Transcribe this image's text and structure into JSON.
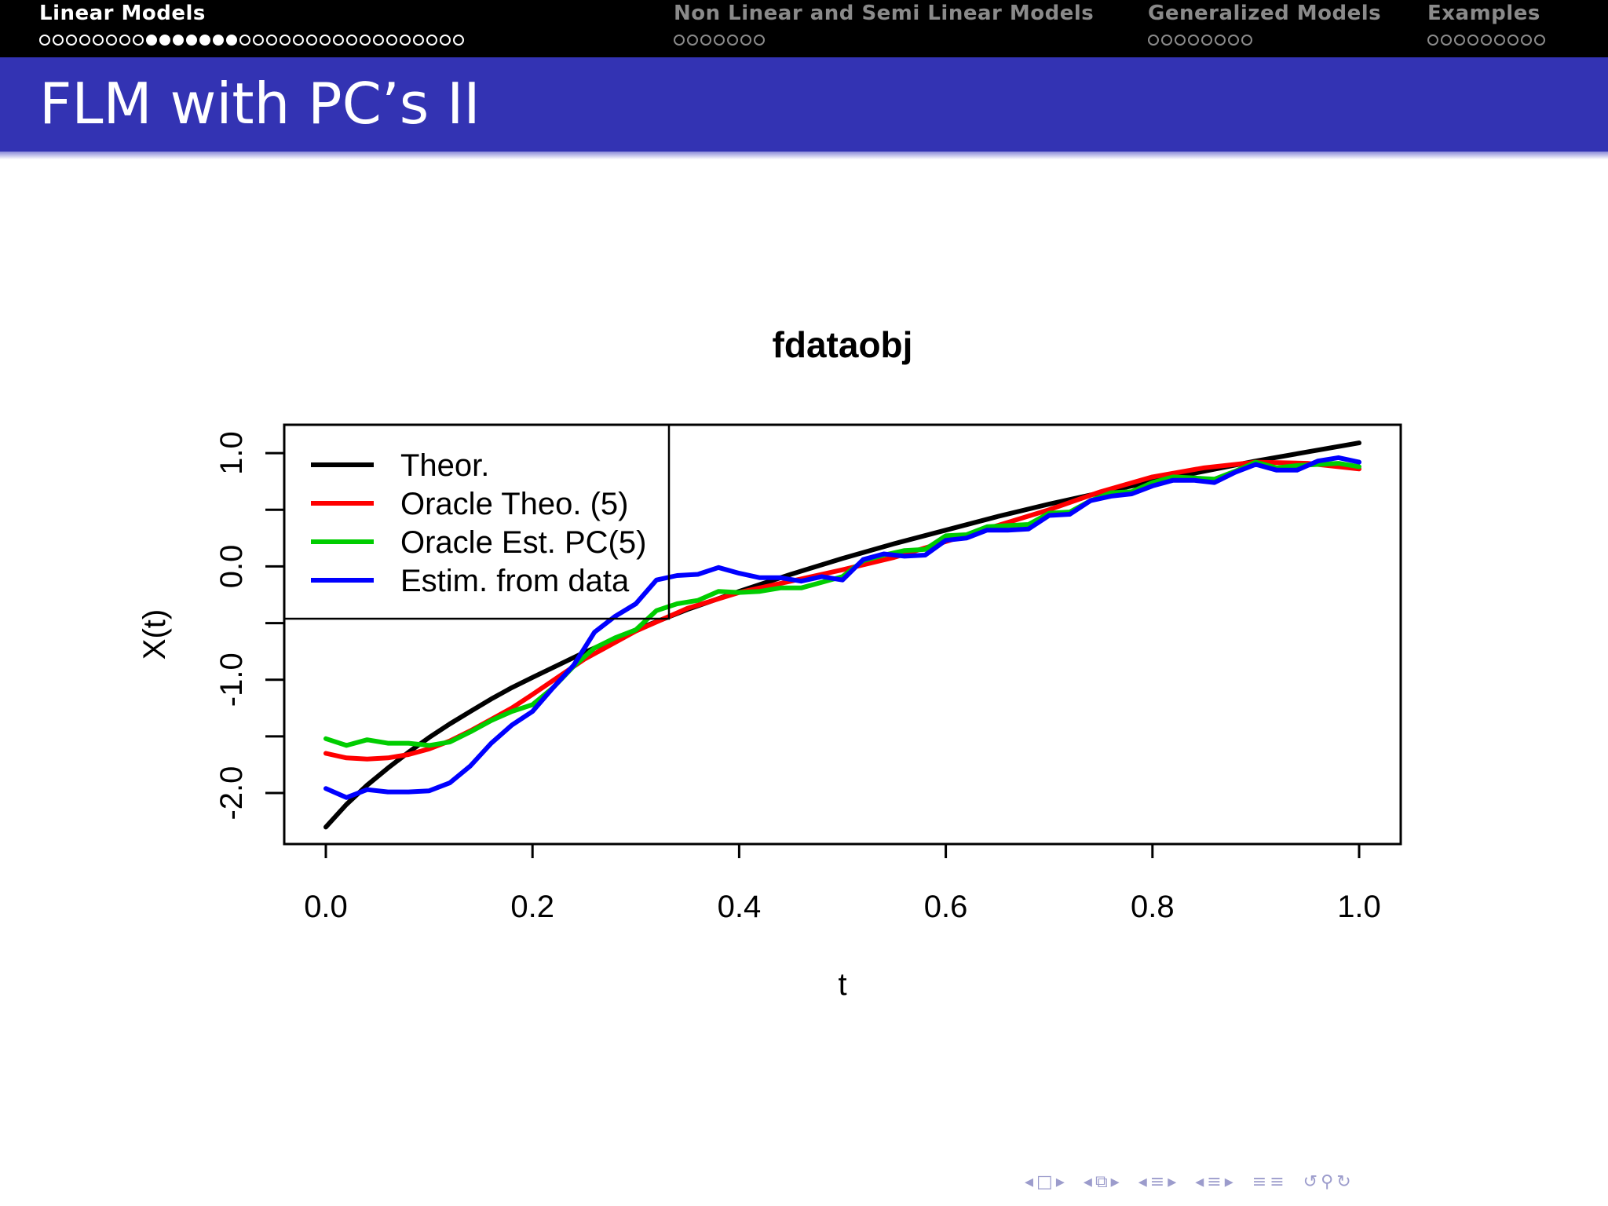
{
  "nav": {
    "sections": [
      {
        "title": "Linear Models",
        "active": true,
        "dots": 32,
        "filled": [
          8,
          9,
          10,
          11,
          12,
          13,
          14
        ]
      },
      {
        "title": "Non Linear and Semi Linear Models",
        "active": false,
        "dots": 7,
        "filled": []
      },
      {
        "title": "Generalized Models",
        "active": false,
        "dots": 8,
        "filled": []
      },
      {
        "title": "Examples",
        "active": false,
        "dots": 9,
        "filled": []
      }
    ]
  },
  "slide": {
    "title": "FLM with PC’s II"
  },
  "colors": {
    "header_bg": "#000000",
    "title_bg": "#3333b3",
    "theor": "#000000",
    "oracle_theo": "#ff0000",
    "oracle_est": "#00cd00",
    "estim": "#0000ff"
  },
  "chart_data": {
    "type": "line",
    "title": "fdataobj",
    "xlabel": "t",
    "ylabel": "X(t)",
    "xlim": [
      0.0,
      1.0
    ],
    "ylim": [
      -2.45,
      1.25
    ],
    "xticks": [
      "0.0",
      "0.2",
      "0.4",
      "0.6",
      "0.8",
      "1.0"
    ],
    "yticks": [
      "-2.0",
      "-1.0",
      "0.0",
      "1.0"
    ],
    "legend_position": "top-left",
    "series": [
      {
        "name": "Theor.",
        "color": "#000000",
        "x": [
          0.0,
          0.02,
          0.04,
          0.06,
          0.08,
          0.1,
          0.12,
          0.14,
          0.16,
          0.18,
          0.2,
          0.25,
          0.3,
          0.35,
          0.4,
          0.45,
          0.5,
          0.55,
          0.6,
          0.65,
          0.7,
          0.75,
          0.8,
          0.85,
          0.9,
          0.95,
          1.0
        ],
        "y": [
          -2.3,
          -2.1,
          -1.93,
          -1.78,
          -1.64,
          -1.51,
          -1.39,
          -1.28,
          -1.17,
          -1.07,
          -0.98,
          -0.76,
          -0.56,
          -0.38,
          -0.22,
          -0.07,
          0.07,
          0.2,
          0.32,
          0.44,
          0.55,
          0.65,
          0.75,
          0.84,
          0.93,
          1.01,
          1.09
        ]
      },
      {
        "name": "Oracle Theo. (5)",
        "color": "#ff0000",
        "x": [
          0.0,
          0.02,
          0.04,
          0.06,
          0.08,
          0.1,
          0.12,
          0.14,
          0.16,
          0.18,
          0.2,
          0.25,
          0.3,
          0.35,
          0.4,
          0.45,
          0.5,
          0.55,
          0.6,
          0.65,
          0.7,
          0.75,
          0.8,
          0.85,
          0.9,
          0.95,
          1.0
        ],
        "y": [
          -1.65,
          -1.69,
          -1.7,
          -1.69,
          -1.66,
          -1.61,
          -1.54,
          -1.45,
          -1.35,
          -1.25,
          -1.13,
          -0.82,
          -0.57,
          -0.37,
          -0.23,
          -0.13,
          -0.03,
          0.08,
          0.22,
          0.36,
          0.5,
          0.66,
          0.79,
          0.87,
          0.92,
          0.91,
          0.86
        ]
      },
      {
        "name": "Oracle Est. PC(5)",
        "color": "#00cd00",
        "x": [
          0.0,
          0.02,
          0.04,
          0.06,
          0.08,
          0.1,
          0.12,
          0.14,
          0.16,
          0.18,
          0.2,
          0.22,
          0.24,
          0.26,
          0.28,
          0.3,
          0.32,
          0.34,
          0.36,
          0.38,
          0.4,
          0.42,
          0.44,
          0.46,
          0.48,
          0.5,
          0.52,
          0.54,
          0.56,
          0.58,
          0.6,
          0.62,
          0.64,
          0.66,
          0.68,
          0.7,
          0.72,
          0.74,
          0.76,
          0.78,
          0.8,
          0.82,
          0.84,
          0.86,
          0.88,
          0.9,
          0.92,
          0.94,
          0.96,
          0.98,
          1.0
        ],
        "y": [
          -1.52,
          -1.58,
          -1.53,
          -1.56,
          -1.56,
          -1.58,
          -1.55,
          -1.46,
          -1.36,
          -1.28,
          -1.22,
          -1.07,
          -0.88,
          -0.72,
          -0.63,
          -0.56,
          -0.39,
          -0.33,
          -0.3,
          -0.22,
          -0.23,
          -0.22,
          -0.19,
          -0.19,
          -0.14,
          -0.09,
          0.05,
          0.1,
          0.14,
          0.15,
          0.27,
          0.28,
          0.35,
          0.36,
          0.37,
          0.47,
          0.48,
          0.58,
          0.65,
          0.66,
          0.74,
          0.79,
          0.78,
          0.77,
          0.84,
          0.92,
          0.87,
          0.89,
          0.9,
          0.91,
          0.88
        ]
      },
      {
        "name": "Estim. from data",
        "color": "#0000ff",
        "x": [
          0.0,
          0.02,
          0.04,
          0.06,
          0.08,
          0.1,
          0.12,
          0.14,
          0.16,
          0.18,
          0.2,
          0.22,
          0.24,
          0.26,
          0.28,
          0.3,
          0.32,
          0.34,
          0.36,
          0.38,
          0.4,
          0.42,
          0.44,
          0.46,
          0.48,
          0.5,
          0.52,
          0.54,
          0.56,
          0.58,
          0.6,
          0.62,
          0.64,
          0.66,
          0.68,
          0.7,
          0.72,
          0.74,
          0.76,
          0.78,
          0.8,
          0.82,
          0.84,
          0.86,
          0.88,
          0.9,
          0.92,
          0.94,
          0.96,
          0.98,
          1.0
        ],
        "y": [
          -1.96,
          -2.04,
          -1.97,
          -1.99,
          -1.99,
          -1.98,
          -1.91,
          -1.76,
          -1.56,
          -1.4,
          -1.28,
          -1.07,
          -0.87,
          -0.58,
          -0.44,
          -0.33,
          -0.12,
          -0.08,
          -0.07,
          -0.01,
          -0.06,
          -0.1,
          -0.1,
          -0.13,
          -0.09,
          -0.12,
          0.06,
          0.11,
          0.09,
          0.1,
          0.23,
          0.25,
          0.32,
          0.32,
          0.33,
          0.45,
          0.46,
          0.58,
          0.62,
          0.64,
          0.71,
          0.76,
          0.76,
          0.74,
          0.83,
          0.9,
          0.85,
          0.85,
          0.93,
          0.96,
          0.92
        ]
      }
    ]
  },
  "footer_nav": {
    "icons": [
      "prev-slide-icon",
      "slide-icon",
      "next-slide-icon",
      "prev-frame-icon",
      "frame-icon",
      "next-frame-icon",
      "prev-subsection-icon",
      "subsection-icon",
      "next-subsection-icon",
      "prev-section-icon",
      "section-icon",
      "next-section-icon",
      "toc-icon",
      "back-icon",
      "search-icon",
      "forward-icon"
    ]
  }
}
